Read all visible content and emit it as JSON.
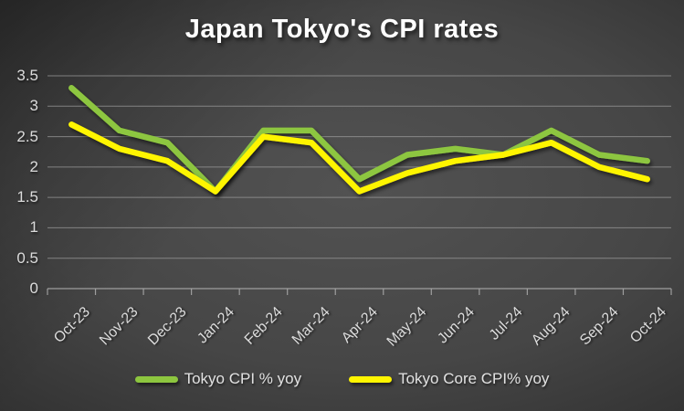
{
  "chart_data": {
    "type": "line",
    "title": "Japan Tokyo's CPI rates",
    "categories": [
      "Oct-23",
      "Nov-23",
      "Dec-23",
      "Jan-24",
      "Feb-24",
      "Mar-24",
      "Apr-24",
      "May-24",
      "Jun-24",
      "Jul-24",
      "Aug-24",
      "Sep-24",
      "Oct-24"
    ],
    "series": [
      {
        "name": "Tokyo CPI % yoy",
        "color": "#8DC63F",
        "values": [
          3.3,
          2.6,
          2.4,
          1.6,
          2.6,
          2.6,
          1.8,
          2.2,
          2.3,
          2.2,
          2.6,
          2.2,
          2.1
        ]
      },
      {
        "name": "Tokyo Core CPI% yoy",
        "color": "#FFF500",
        "values": [
          2.7,
          2.3,
          2.1,
          1.6,
          2.5,
          2.4,
          1.6,
          1.9,
          2.1,
          2.2,
          2.4,
          2.0,
          1.8
        ]
      }
    ],
    "xlabel": "",
    "ylabel": "",
    "ylim": [
      0,
      3.5
    ],
    "ytick_step": 0.5,
    "ytick_labels": [
      "0",
      "0.5",
      "1",
      "1.5",
      "2",
      "2.5",
      "3",
      "3.5"
    ],
    "grid": "horizontal",
    "legend_position": "bottom"
  },
  "colors": {
    "background_center": "#525252",
    "background_edge": "#1c1c1c",
    "gridline": "#9a9a9a",
    "axis_text": "#dcdcdc",
    "title_text": "#ffffff",
    "series_green": "#8DC63F",
    "series_yellow": "#FFF500"
  }
}
